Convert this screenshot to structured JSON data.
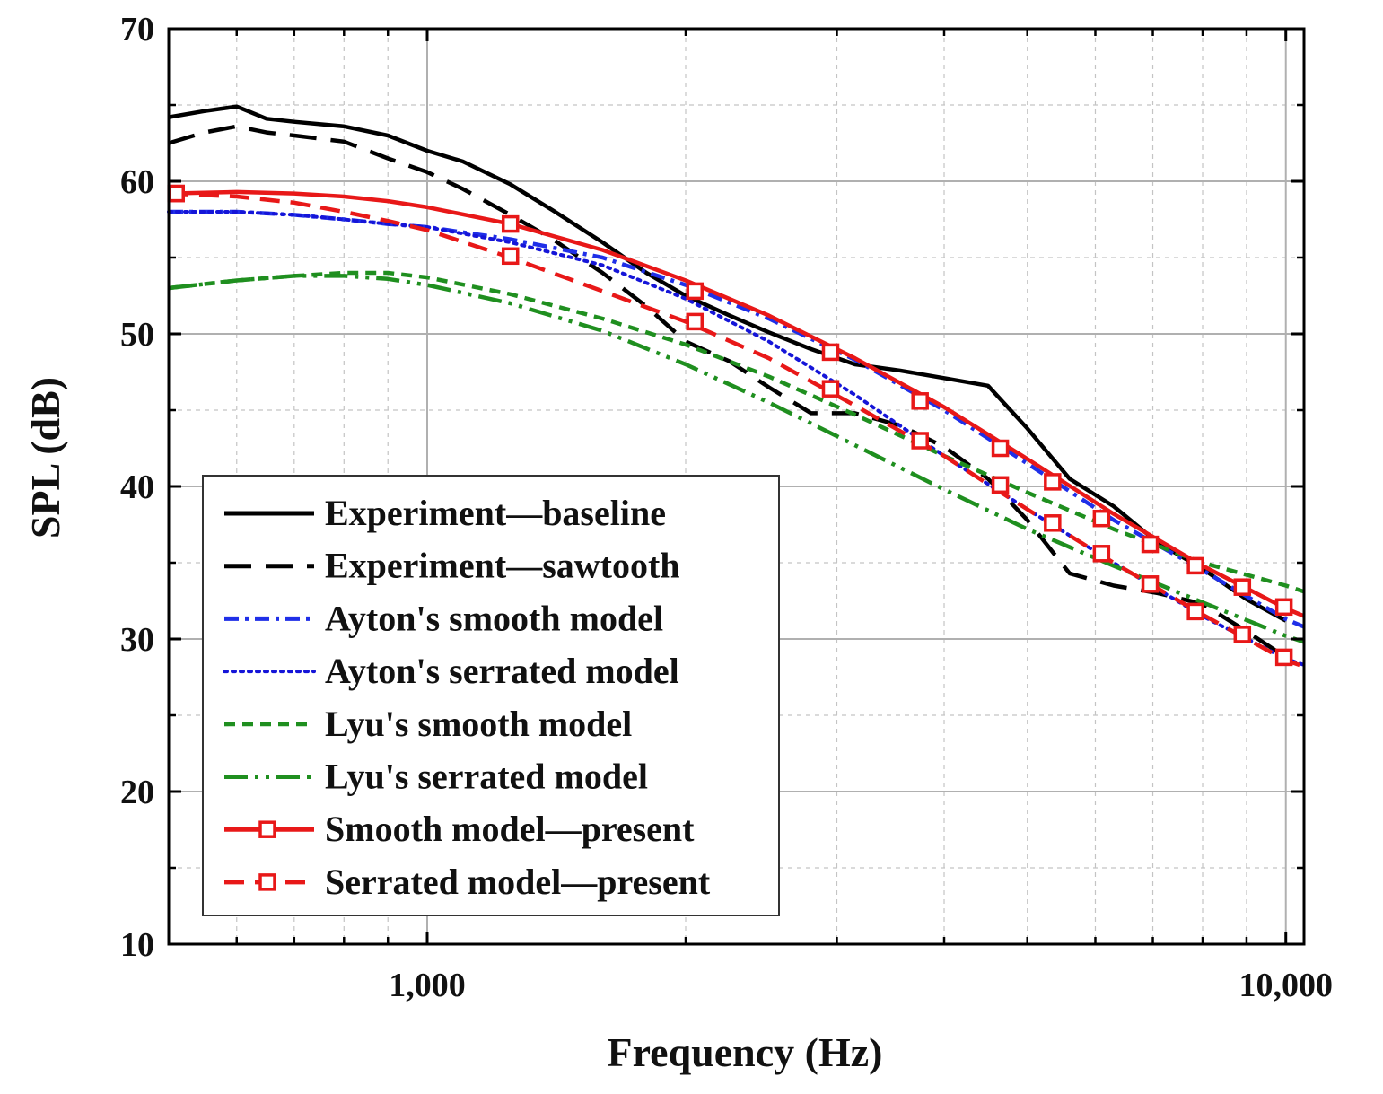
{
  "chart_data": {
    "type": "line",
    "title": "",
    "xlabel": "Frequency (Hz)",
    "ylabel": "SPL (dB)",
    "xscale": "log",
    "xlim": [
      500,
      10500
    ],
    "ylim": [
      10,
      70
    ],
    "x_major_ticks": [
      1000,
      10000
    ],
    "x_major_tick_labels": [
      "1,000",
      "10,000"
    ],
    "x_minor_ticks": [
      600,
      700,
      800,
      900,
      2000,
      3000,
      4000,
      5000,
      6000,
      7000,
      8000,
      9000
    ],
    "y_major_ticks": [
      10,
      20,
      30,
      40,
      50,
      60,
      70
    ],
    "y_major_tick_labels": [
      "10",
      "20",
      "30",
      "40",
      "50",
      "60",
      "70"
    ],
    "y_minor_ticks": [
      15,
      25,
      35,
      45,
      55,
      65
    ],
    "grid": true,
    "legend_position": "bottom-left",
    "series": [
      {
        "name": "Experiment—baseline",
        "color": "#000000",
        "line_style": "solid",
        "marker": "none",
        "x": [
          500,
          550,
          600,
          650,
          700,
          800,
          900,
          1000,
          1100,
          1250,
          1400,
          1600,
          1800,
          2000,
          2250,
          2500,
          2800,
          3150,
          3550,
          4000,
          4500,
          5000,
          5600,
          6300,
          7100,
          8000,
          9000,
          10000
        ],
        "y": [
          64.2,
          64.6,
          64.9,
          64.1,
          63.9,
          63.6,
          63.0,
          62.0,
          61.3,
          59.8,
          58.1,
          56.0,
          54.0,
          52.5,
          51.2,
          50.1,
          49.0,
          48.0,
          47.6,
          47.1,
          46.6,
          43.8,
          40.5,
          38.7,
          36.3,
          34.6,
          32.6,
          31.2
        ]
      },
      {
        "name": "Experiment—sawtooth",
        "color": "#000000",
        "line_style": "longdash",
        "marker": "none",
        "x": [
          500,
          550,
          600,
          650,
          700,
          800,
          900,
          1000,
          1100,
          1250,
          1400,
          1600,
          1800,
          2000,
          2250,
          2500,
          2800,
          3150,
          3550,
          4000,
          4500,
          5000,
          5600,
          6300,
          7100,
          8000,
          9000,
          10000
        ],
        "y": [
          62.5,
          63.2,
          63.6,
          63.2,
          63.0,
          62.6,
          61.5,
          60.6,
          59.5,
          57.8,
          56.2,
          54.0,
          51.8,
          49.5,
          48.2,
          46.5,
          44.8,
          44.8,
          44.0,
          42.6,
          40.5,
          37.8,
          34.3,
          33.5,
          33.0,
          32.3,
          30.5,
          28.8
        ]
      },
      {
        "name": "Ayton's smooth model",
        "color": "#1f2fe8",
        "line_style": "dashdot",
        "marker": "none",
        "x": [
          500,
          600,
          700,
          800,
          900,
          1000,
          1250,
          1600,
          2000,
          2500,
          3150,
          4000,
          5000,
          6300,
          8000,
          10000,
          10500
        ],
        "y": [
          58.0,
          58.0,
          57.8,
          57.5,
          57.2,
          57.0,
          56.2,
          55.0,
          53.2,
          51.0,
          48.3,
          45.0,
          41.5,
          37.8,
          34.5,
          31.3,
          30.8
        ]
      },
      {
        "name": "Ayton's serrated model",
        "color": "#1515d8",
        "line_style": "dotted",
        "marker": "none",
        "x": [
          500,
          600,
          700,
          800,
          900,
          1000,
          1250,
          1600,
          2000,
          2500,
          3150,
          4000,
          5000,
          6300,
          8000,
          10000,
          10500
        ],
        "y": [
          58.0,
          58.0,
          57.8,
          57.5,
          57.2,
          57.0,
          56.0,
          54.5,
          52.3,
          49.5,
          46.0,
          42.0,
          38.5,
          35.0,
          31.5,
          28.7,
          28.3
        ]
      },
      {
        "name": "Lyu's smooth model",
        "color": "#1f8f1f",
        "line_style": "shortdash",
        "marker": "none",
        "x": [
          500,
          600,
          700,
          800,
          900,
          1000,
          1250,
          1600,
          2000,
          2500,
          3150,
          4000,
          5000,
          6300,
          8000,
          10000,
          10500
        ],
        "y": [
          53.0,
          53.5,
          53.8,
          54.0,
          54.0,
          53.7,
          52.6,
          51.0,
          49.3,
          47.2,
          44.7,
          42.0,
          39.6,
          37.2,
          35.0,
          33.5,
          33.1
        ]
      },
      {
        "name": "Lyu's serrated model",
        "color": "#1f8f1f",
        "line_style": "dashdotdot",
        "marker": "none",
        "x": [
          500,
          600,
          700,
          800,
          900,
          1000,
          1250,
          1600,
          2000,
          2500,
          3150,
          4000,
          5000,
          6300,
          8000,
          10000,
          10500
        ],
        "y": [
          53.0,
          53.5,
          53.8,
          53.8,
          53.6,
          53.2,
          52.0,
          50.2,
          48.0,
          45.5,
          42.7,
          39.8,
          37.2,
          34.8,
          32.4,
          30.2,
          29.8
        ]
      },
      {
        "name": "Smooth model—present",
        "color": "#e81818",
        "line_style": "solid",
        "marker": "square",
        "x": [
          500,
          600,
          700,
          800,
          900,
          1000,
          1250,
          1600,
          2000,
          2500,
          3150,
          4000,
          5000,
          6300,
          8000,
          10000,
          10500
        ],
        "y": [
          59.2,
          59.3,
          59.2,
          59.0,
          58.7,
          58.3,
          57.2,
          55.5,
          53.5,
          51.2,
          48.4,
          45.2,
          41.8,
          38.2,
          34.8,
          32.0,
          31.5
        ],
        "marker_x": [
          510,
          1250,
          2050,
          2950,
          3750,
          4650,
          5350,
          6100,
          6950,
          7850,
          8900,
          9950
        ],
        "marker_y": [
          59.2,
          57.2,
          52.8,
          48.8,
          45.6,
          42.5,
          40.3,
          37.9,
          36.2,
          34.8,
          33.4,
          32.1
        ]
      },
      {
        "name": "Serrated model—present",
        "color": "#e81818",
        "line_style": "dashed",
        "marker": "square",
        "x": [
          500,
          600,
          700,
          800,
          900,
          1000,
          1250,
          1600,
          2000,
          2500,
          3150,
          4000,
          5000,
          6300,
          8000,
          10000,
          10500
        ],
        "y": [
          59.2,
          59.0,
          58.6,
          58.0,
          57.4,
          56.8,
          55.0,
          52.8,
          50.8,
          48.4,
          45.3,
          42.0,
          38.5,
          35.0,
          31.6,
          28.6,
          28.2
        ],
        "marker_x": [
          510,
          1250,
          2050,
          2950,
          3750,
          4650,
          5350,
          6100,
          6950,
          7850,
          8900,
          9950
        ],
        "marker_y": [
          59.2,
          55.1,
          50.8,
          46.4,
          43.0,
          40.1,
          37.6,
          35.6,
          33.6,
          31.8,
          30.3,
          28.8
        ]
      }
    ]
  }
}
